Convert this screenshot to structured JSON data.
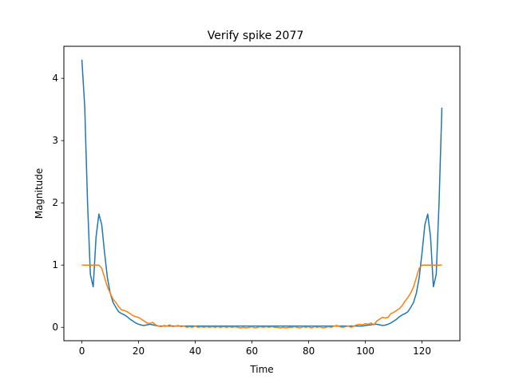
{
  "chart_data": {
    "type": "line",
    "title": "Verify spike 2077",
    "xlabel": "Time",
    "ylabel": "Magnitude",
    "xlim": [
      -6.35,
      133.35
    ],
    "ylim": [
      -0.215,
      4.515
    ],
    "xticks": [
      0,
      20,
      40,
      60,
      80,
      100,
      120
    ],
    "yticks": [
      0,
      1,
      2,
      3,
      4
    ],
    "grid": false,
    "legend": false,
    "series": [
      {
        "color": "#1f77b4",
        "x": [
          0,
          1,
          2,
          3,
          4,
          5,
          6,
          7,
          8,
          9,
          10,
          11,
          12,
          13,
          14,
          15,
          16,
          17,
          18,
          19,
          20,
          21,
          22,
          23,
          24,
          25,
          26,
          27,
          28,
          29,
          30,
          31,
          32,
          33,
          34,
          35,
          36,
          37,
          38,
          39,
          40,
          41,
          42,
          43,
          44,
          45,
          46,
          47,
          48,
          49,
          50,
          51,
          52,
          53,
          54,
          55,
          56,
          57,
          58,
          59,
          60,
          61,
          62,
          63,
          64,
          65,
          66,
          67,
          68,
          69,
          70,
          71,
          72,
          73,
          74,
          75,
          76,
          77,
          78,
          79,
          80,
          81,
          82,
          83,
          84,
          85,
          86,
          87,
          88,
          89,
          90,
          91,
          92,
          93,
          94,
          95,
          96,
          97,
          98,
          99,
          100,
          101,
          102,
          103,
          104,
          105,
          106,
          107,
          108,
          109,
          110,
          111,
          112,
          113,
          114,
          115,
          116,
          117,
          118,
          119,
          120,
          121,
          122,
          123,
          124,
          125,
          126,
          127
        ],
        "y": [
          4.3,
          3.55,
          2.0,
          0.85,
          0.65,
          1.45,
          1.82,
          1.65,
          1.2,
          0.8,
          0.55,
          0.4,
          0.32,
          0.25,
          0.22,
          0.2,
          0.17,
          0.13,
          0.1,
          0.07,
          0.05,
          0.035,
          0.03,
          0.04,
          0.05,
          0.04,
          0.03,
          0.02,
          0.02,
          0.02,
          0.02,
          0.02,
          0.02,
          0.02,
          0.02,
          0.02,
          0.02,
          0.02,
          0.02,
          0.02,
          0.02,
          0.02,
          0.02,
          0.02,
          0.02,
          0.02,
          0.02,
          0.02,
          0.02,
          0.02,
          0.02,
          0.02,
          0.02,
          0.02,
          0.02,
          0.02,
          0.02,
          0.02,
          0.02,
          0.02,
          0.02,
          0.02,
          0.02,
          0.02,
          0.02,
          0.02,
          0.02,
          0.02,
          0.02,
          0.02,
          0.02,
          0.02,
          0.02,
          0.02,
          0.02,
          0.02,
          0.02,
          0.02,
          0.02,
          0.02,
          0.02,
          0.02,
          0.02,
          0.02,
          0.02,
          0.02,
          0.02,
          0.02,
          0.02,
          0.02,
          0.02,
          0.02,
          0.02,
          0.02,
          0.02,
          0.02,
          0.02,
          0.02,
          0.02,
          0.02,
          0.03,
          0.035,
          0.04,
          0.05,
          0.05,
          0.04,
          0.03,
          0.035,
          0.05,
          0.07,
          0.1,
          0.13,
          0.17,
          0.2,
          0.22,
          0.25,
          0.32,
          0.4,
          0.55,
          0.8,
          1.2,
          1.65,
          1.82,
          1.45,
          0.65,
          0.85,
          2.0,
          3.53
        ]
      },
      {
        "color": "#ff7f0e",
        "x": [
          0,
          1,
          2,
          3,
          4,
          5,
          6,
          7,
          8,
          9,
          10,
          11,
          12,
          13,
          14,
          15,
          16,
          17,
          18,
          19,
          20,
          21,
          22,
          23,
          24,
          25,
          26,
          27,
          28,
          29,
          30,
          31,
          32,
          33,
          34,
          35,
          36,
          37,
          38,
          39,
          40,
          41,
          42,
          43,
          44,
          45,
          46,
          47,
          48,
          49,
          50,
          51,
          52,
          53,
          54,
          55,
          56,
          57,
          58,
          59,
          60,
          61,
          62,
          63,
          64,
          65,
          66,
          67,
          68,
          69,
          70,
          71,
          72,
          73,
          74,
          75,
          76,
          77,
          78,
          79,
          80,
          81,
          82,
          83,
          84,
          85,
          86,
          87,
          88,
          89,
          90,
          91,
          92,
          93,
          94,
          95,
          96,
          97,
          98,
          99,
          100,
          101,
          102,
          103,
          104,
          105,
          106,
          107,
          108,
          109,
          110,
          111,
          112,
          113,
          114,
          115,
          116,
          117,
          118,
          119,
          120,
          121,
          122,
          123,
          124,
          125,
          126,
          127
        ],
        "y": [
          1.0,
          1.0,
          1.0,
          1.0,
          1.0,
          1.0,
          1.0,
          0.95,
          0.8,
          0.65,
          0.55,
          0.45,
          0.4,
          0.33,
          0.28,
          0.27,
          0.25,
          0.22,
          0.19,
          0.17,
          0.16,
          0.13,
          0.1,
          0.07,
          0.06,
          0.08,
          0.04,
          0.02,
          0.01,
          0.03,
          0.02,
          0.04,
          0.01,
          0.02,
          0.03,
          0.01,
          0.02,
          0.0,
          0.01,
          0.0,
          0.02,
          0.0,
          0.01,
          0.0,
          0.01,
          0.0,
          0.01,
          0.0,
          0.01,
          0.0,
          0.01,
          0.0,
          0.01,
          0.0,
          0.01,
          0.0,
          -0.01,
          0.0,
          -0.01,
          0.0,
          0.01,
          -0.01,
          0.0,
          0.01,
          0.0,
          0.01,
          0.0,
          0.01,
          0.0,
          0.0,
          -0.01,
          0.0,
          -0.01,
          0.0,
          0.0,
          0.01,
          0.0,
          -0.01,
          0.01,
          0.0,
          0.01,
          -0.01,
          0.01,
          0.0,
          0.01,
          -0.01,
          0.0,
          0.01,
          0.0,
          0.02,
          0.03,
          0.01,
          0.0,
          0.01,
          0.02,
          0.0,
          0.02,
          0.04,
          0.05,
          0.04,
          0.06,
          0.05,
          0.07,
          0.04,
          0.1,
          0.13,
          0.16,
          0.15,
          0.16,
          0.22,
          0.24,
          0.27,
          0.3,
          0.35,
          0.42,
          0.48,
          0.55,
          0.65,
          0.8,
          0.95,
          1.0,
          1.0,
          1.0,
          1.0,
          1.0,
          1.0,
          1.0,
          1.0
        ]
      }
    ]
  }
}
